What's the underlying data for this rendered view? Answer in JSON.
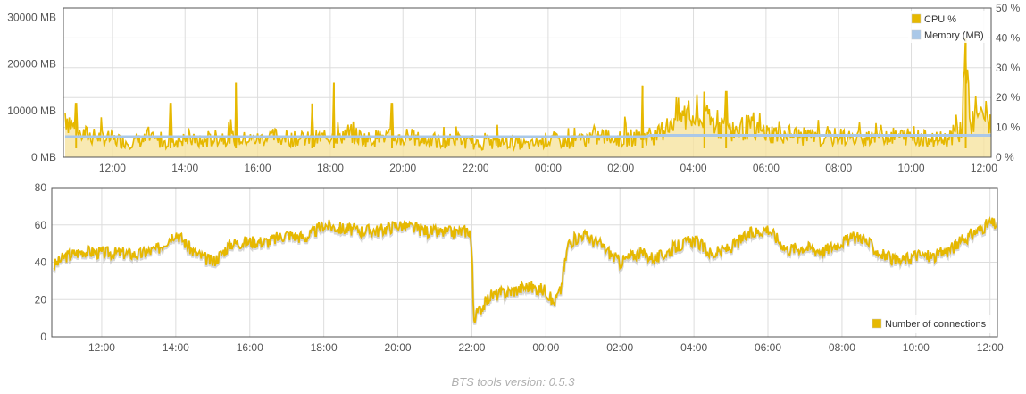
{
  "footer": {
    "text": "BTS tools version: 0.5.3"
  },
  "colors": {
    "cpu": "#e6b800",
    "memory": "#aac8e8",
    "connections": "#e6b800",
    "grid": "#dddddd",
    "frame": "#555555"
  },
  "chart_data": [
    {
      "type": "line",
      "title": "",
      "x_ticks": [
        "12:00",
        "14:00",
        "16:00",
        "18:00",
        "20:00",
        "22:00",
        "00:00",
        "02:00",
        "04:00",
        "06:00",
        "08:00",
        "10:00",
        "12:00"
      ],
      "x_range_hours": [
        10.65,
        36.2
      ],
      "y_left": {
        "ticks": [
          "0 MB",
          "10000 MB",
          "20000 MB",
          "30000 MB"
        ],
        "range": [
          0,
          32000
        ],
        "unit": "MB"
      },
      "y_right": {
        "ticks": [
          "0 %",
          "10 %",
          "20 %",
          "30 %",
          "40 %",
          "50 %"
        ],
        "range": [
          0,
          50
        ],
        "unit": "%"
      },
      "legend": {
        "position": "top-right",
        "entries": [
          "CPU %",
          "Memory (MB)"
        ]
      },
      "series": [
        {
          "name": "CPU %",
          "axis": "right",
          "x": [
            10.7,
            11.0,
            11.5,
            12.0,
            12.5,
            13.0,
            13.5,
            14.0,
            14.5,
            15.0,
            15.5,
            16.0,
            16.5,
            17.0,
            17.5,
            18.0,
            18.5,
            19.0,
            19.5,
            20.0,
            20.5,
            21.0,
            21.5,
            22.0,
            22.5,
            23.0,
            23.5,
            24.0,
            24.5,
            25.0,
            25.5,
            26.0,
            26.5,
            27.0,
            27.5,
            28.0,
            28.5,
            29.0,
            29.5,
            30.0,
            30.5,
            31.0,
            31.5,
            32.0,
            32.5,
            33.0,
            33.5,
            34.0,
            34.5,
            35.0,
            35.4,
            35.5,
            35.6,
            36.0,
            36.2
          ],
          "values": [
            15,
            8,
            7,
            6,
            5,
            6,
            5,
            6,
            5,
            7,
            6,
            6,
            7,
            6,
            6,
            7,
            8,
            6,
            7,
            6,
            6,
            5,
            6,
            4,
            5,
            5,
            4,
            6,
            5,
            6,
            7,
            6,
            7,
            7,
            14,
            13,
            12,
            9,
            10,
            8,
            8,
            7,
            6,
            7,
            6,
            8,
            7,
            7,
            6,
            6,
            10,
            40,
            12,
            14,
            12
          ],
          "peaks": [
            {
              "x": 11.0,
              "value": 18
            },
            {
              "x": 13.6,
              "value": 18
            },
            {
              "x": 15.4,
              "value": 25
            },
            {
              "x": 17.5,
              "value": 18
            },
            {
              "x": 18.1,
              "value": 25
            },
            {
              "x": 19.7,
              "value": 18
            },
            {
              "x": 26.6,
              "value": 24
            },
            {
              "x": 28.3,
              "value": 22
            },
            {
              "x": 28.9,
              "value": 22
            },
            {
              "x": 35.5,
              "value": 40
            }
          ]
        },
        {
          "name": "Memory (MB)",
          "axis": "left",
          "x": [
            10.7,
            26.7,
            26.8,
            36.2
          ],
          "values": [
            4400,
            4400,
            4700,
            4700
          ]
        }
      ]
    },
    {
      "type": "line",
      "title": "",
      "x_ticks": [
        "12:00",
        "14:00",
        "16:00",
        "18:00",
        "20:00",
        "22:00",
        "00:00",
        "02:00",
        "04:00",
        "06:00",
        "08:00",
        "10:00",
        "12:00"
      ],
      "x_range_hours": [
        10.65,
        36.2
      ],
      "y": {
        "ticks": [
          "0",
          "20",
          "40",
          "60",
          "80"
        ],
        "range": [
          0,
          80
        ]
      },
      "legend": {
        "position": "bottom-right",
        "entries": [
          "Number of connections"
        ]
      },
      "series": [
        {
          "name": "Number of connections",
          "x": [
            10.7,
            11.0,
            11.5,
            12.0,
            12.5,
            13.0,
            13.5,
            14.0,
            14.5,
            15.0,
            15.5,
            16.0,
            16.5,
            17.0,
            17.5,
            18.0,
            18.5,
            19.0,
            19.5,
            20.0,
            20.5,
            21.0,
            21.5,
            21.95,
            22.0,
            22.05,
            22.5,
            23.0,
            23.5,
            24.0,
            24.2,
            24.4,
            24.6,
            25.0,
            25.5,
            26.0,
            26.5,
            27.0,
            27.5,
            28.0,
            28.5,
            29.0,
            29.5,
            30.0,
            30.5,
            31.0,
            31.5,
            32.0,
            32.5,
            33.0,
            33.5,
            34.0,
            34.5,
            35.0,
            35.5,
            36.0,
            36.2
          ],
          "values": [
            38,
            43,
            46,
            45,
            45,
            44,
            47,
            56,
            45,
            40,
            50,
            51,
            51,
            55,
            53,
            60,
            58,
            57,
            57,
            60,
            58,
            56,
            56,
            57,
            45,
            10,
            22,
            24,
            27,
            25,
            18,
            25,
            50,
            55,
            49,
            40,
            45,
            42,
            48,
            52,
            44,
            48,
            55,
            58,
            47,
            48,
            46,
            51,
            54,
            45,
            40,
            44,
            43,
            48,
            55,
            61,
            60
          ]
        }
      ]
    }
  ]
}
